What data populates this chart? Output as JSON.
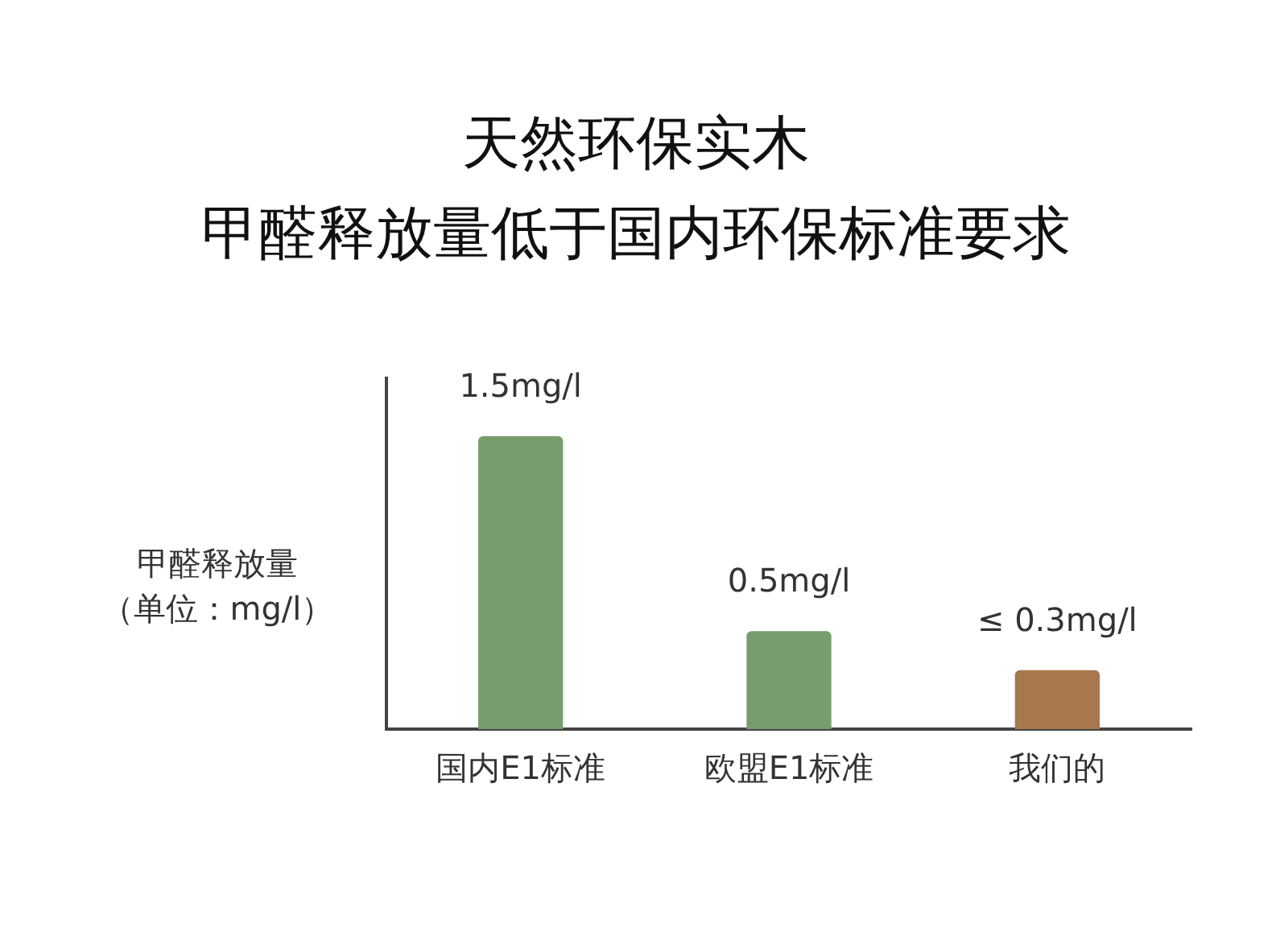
{
  "chart_data": {
    "type": "bar",
    "title": "天然环保实木",
    "subtitle": "甲醛释放量低于国内环保标准要求",
    "ylabel": "甲醛释放量",
    "annotations": [
      "（单位：mg/l）"
    ],
    "categories": [
      "国内E1标准",
      "欧盟E1标准",
      "我们的"
    ],
    "values": [
      1.5,
      0.5,
      0.3
    ],
    "value_labels": [
      "1.5mg/l",
      "0.5mg/l",
      "≤ 0.3mg/l"
    ],
    "colors": [
      "#799c6c",
      "#799c6c",
      "#a7784e"
    ],
    "grid": false,
    "legend": false
  }
}
